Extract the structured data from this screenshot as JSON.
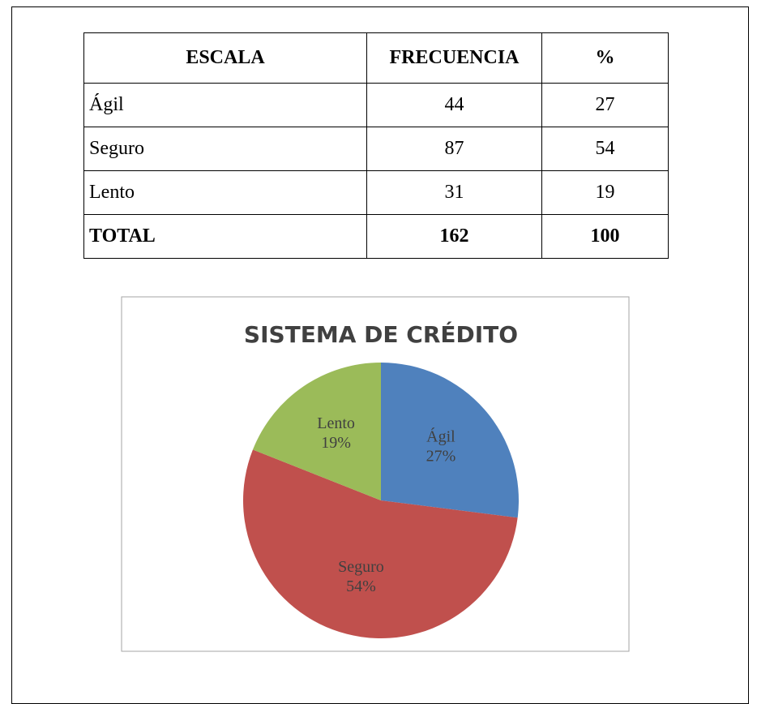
{
  "table": {
    "header": [
      "ESCALA",
      "FRECUENCIA",
      "%"
    ],
    "rows": [
      [
        "Ágil",
        "44",
        "27"
      ],
      [
        "Seguro",
        "87",
        "54"
      ],
      [
        "Lento",
        "31",
        "19"
      ],
      [
        "TOTAL",
        "162",
        "100"
      ]
    ]
  },
  "chart_data": {
    "type": "pie",
    "title": "SISTEMA DE CRÉDITO",
    "categories": [
      "Ágil",
      "Seguro",
      "Lento"
    ],
    "values": [
      27,
      54,
      19
    ],
    "value_labels": [
      "27%",
      "54%",
      "19%"
    ],
    "colors": [
      "#4f81bd",
      "#c0504d",
      "#9bbb59"
    ]
  }
}
